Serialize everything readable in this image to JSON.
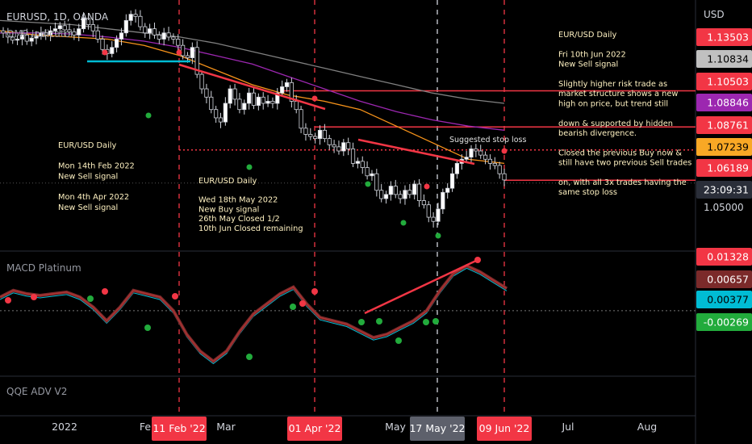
{
  "header": {
    "symbol": "EURUSD, 1D, OANDA",
    "indicator": "QMP Indicator"
  },
  "price_axis": {
    "unit": "USD",
    "tick": "1.05000",
    "tags": [
      {
        "label": "1.13503",
        "price": 1.13503,
        "color": "#f23645"
      },
      {
        "label": "1.10834",
        "price": 1.10834,
        "color": "#c0c0c0"
      },
      {
        "label": "1.10503",
        "price": 1.10503,
        "color": "#f23645"
      },
      {
        "label": "1.08846",
        "price": 1.08846,
        "color": "#9c27b0"
      },
      {
        "label": "1.08761",
        "price": 1.08761,
        "color": "#f23645"
      },
      {
        "label": "1.07239",
        "price": 1.07239,
        "color": "#f9a825"
      },
      {
        "label": "1.06189",
        "price": 1.06189,
        "color": "#f23645"
      },
      {
        "label": "23:09:31",
        "price": 1.0599,
        "color": "#2a2e39"
      }
    ]
  },
  "macd": {
    "name": "MACD Platinum",
    "tags": [
      {
        "label": "0.01328",
        "value": 0.01328,
        "color": "#f23645"
      },
      {
        "label": "0.00657",
        "value": 0.00657,
        "color": "#7b2a2a"
      },
      {
        "label": "0.00377",
        "value": 0.00377,
        "color": "#00bcd4"
      },
      {
        "label": "-0.00269",
        "value": -0.00269,
        "color": "#22ab3c"
      }
    ]
  },
  "qqe": {
    "name": "QQE ADV V2"
  },
  "time_axis": {
    "labels": [
      "2022",
      "Fe",
      "Mar",
      "May",
      "Jul",
      "Aug"
    ],
    "highlights": [
      {
        "label": "11 Feb '22",
        "color": "#f23645"
      },
      {
        "label": "01 Apr '22",
        "color": "#f23645"
      },
      {
        "label": "17 May '22",
        "color": "#5d606b"
      },
      {
        "label": "09 Jun '22",
        "color": "#f23645"
      }
    ]
  },
  "annotations": {
    "feb_note": [
      "EUR/USD Daily",
      "",
      "Mon 14th Feb 2022",
      "New Sell signal",
      "",
      "Mon 4th Apr 2022",
      "New Sell signal"
    ],
    "may_note": [
      "EUR/USD Daily",
      "",
      "Wed 18th May 2022",
      "New Buy signal",
      "26th May Closed 1/2",
      "10th Jun Closed remaining"
    ],
    "jun_note": [
      "EUR/USD Daily",
      "",
      "Fri 10th Jun 2022",
      "New Sell signal",
      "",
      "Slightly higher risk trade as",
      "market structure shows a new",
      "high on price, but trend still",
      "",
      "down & supported by hidden",
      "bearish divergence.",
      "",
      "Closed the previous Buy now &",
      "still have two previous Sell trades",
      "",
      "on, with all 3x trades having the",
      "same stop loss"
    ],
    "stop_loss": "Suggested stop loss"
  },
  "chart_data": {
    "type": "candlestick",
    "price_range": [
      1.03,
      1.145
    ],
    "macd_range": [
      -0.018,
      0.016
    ],
    "closes": [
      1.133,
      1.131,
      1.1295,
      1.13,
      1.132,
      1.129,
      1.1305,
      1.1315,
      1.133,
      1.132,
      1.134,
      1.135,
      1.1365,
      1.1345,
      1.1335,
      1.132,
      1.135,
      1.14,
      1.137,
      1.134,
      1.13,
      1.125,
      1.123,
      1.126,
      1.13,
      1.133,
      1.139,
      1.142,
      1.141,
      1.136,
      1.133,
      1.135,
      1.132,
      1.13,
      1.133,
      1.131,
      1.13,
      1.127,
      1.122,
      1.121,
      1.126,
      1.113,
      1.106,
      1.102,
      1.096,
      1.092,
      1.09,
      1.099,
      1.106,
      1.101,
      1.096,
      1.099,
      1.104,
      1.098,
      1.102,
      1.099,
      1.1,
      1.099,
      1.104,
      1.107,
      1.109,
      1.1,
      1.096,
      1.087,
      1.084,
      1.083,
      1.082,
      1.086,
      1.082,
      1.079,
      1.078,
      1.076,
      1.08,
      1.077,
      1.07,
      1.071,
      1.068,
      1.064,
      1.065,
      1.057,
      1.053,
      1.055,
      1.059,
      1.055,
      1.053,
      1.057,
      1.055,
      1.06,
      1.052,
      1.05,
      1.044,
      1.042,
      1.048,
      1.056,
      1.058,
      1.065,
      1.07,
      1.072,
      1.073,
      1.077,
      1.076,
      1.074,
      1.072,
      1.07,
      1.069,
      1.065,
      1.062
    ],
    "series": [
      {
        "name": "EMA",
        "color": "#f7931a",
        "values": [
          1.134,
          1.132,
          1.131,
          1.13,
          1.127,
          1.122,
          1.115,
          1.108,
          1.103,
          1.1,
          1.096,
          1.088,
          1.08,
          1.072,
          1.07
        ]
      },
      {
        "name": "MA",
        "color": "#9c27b0",
        "values": [
          1.133,
          1.133,
          1.1325,
          1.131,
          1.129,
          1.126,
          1.122,
          1.118,
          1.112,
          1.106,
          1.1,
          1.095,
          1.091,
          1.088,
          1.086
        ]
      },
      {
        "name": "MA",
        "color": "#808080",
        "values": [
          1.139,
          1.138,
          1.137,
          1.135,
          1.133,
          1.131,
          1.128,
          1.124,
          1.12,
          1.116,
          1.112,
          1.108,
          1.104,
          1.101,
          1.099
        ]
      },
      {
        "name": "MACD",
        "values": [
          0.004,
          0.006,
          0.005,
          0.0045,
          0.005,
          0.0055,
          0.004,
          0.001,
          -0.003,
          0.001,
          0.006,
          0.005,
          0.004,
          0.0,
          -0.007,
          -0.012,
          -0.015,
          -0.012,
          -0.006,
          -0.001,
          0.002,
          0.005,
          0.007,
          0.002,
          -0.002,
          -0.003,
          -0.004,
          -0.006,
          -0.008,
          -0.007,
          -0.005,
          -0.003,
          0.0,
          0.006,
          0.011,
          0.0133,
          0.0115,
          0.009,
          0.0066
        ]
      }
    ]
  }
}
